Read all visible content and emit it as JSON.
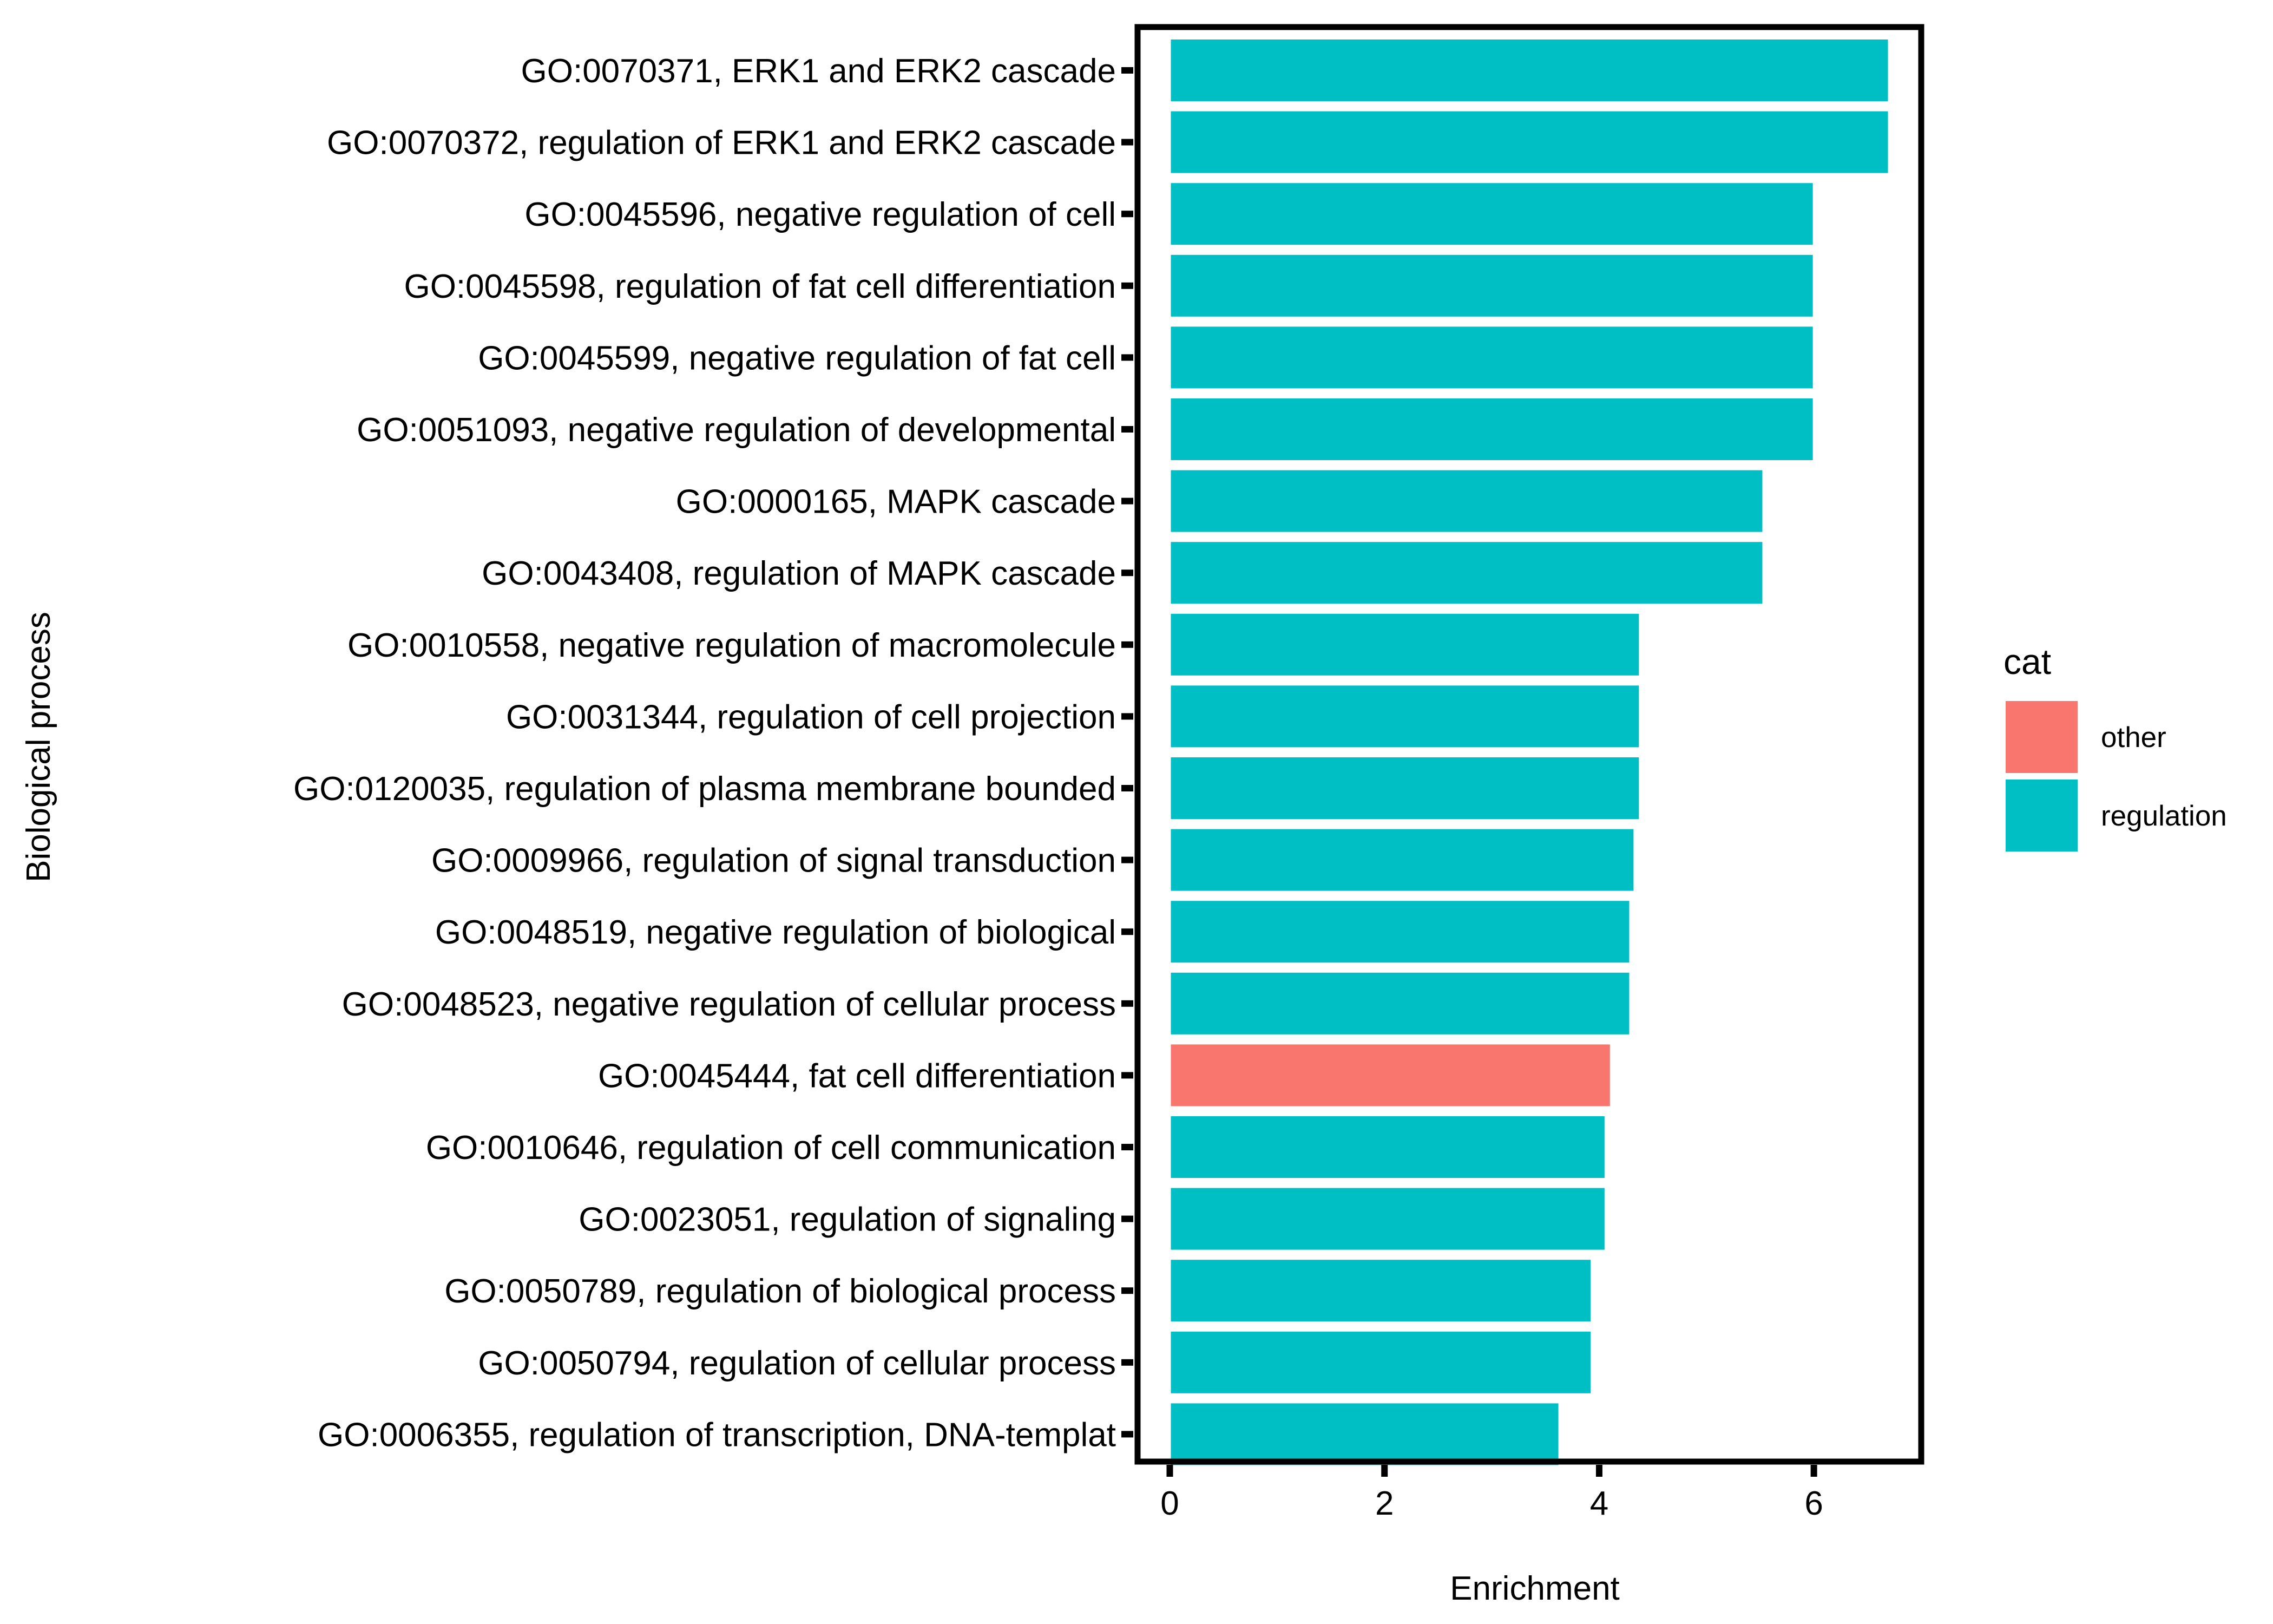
{
  "chart_data": {
    "type": "bar",
    "orientation": "horizontal",
    "xlabel": "Enrichment",
    "ylabel": "Biological process",
    "xlim": [
      -0.3,
      7.0
    ],
    "xticks": [
      0,
      2,
      4,
      6
    ],
    "grid": false,
    "legend_position": "right",
    "legend_title": "cat",
    "colors": {
      "other": "#F8766D",
      "regulation": "#00BFC4"
    },
    "legend": [
      {
        "name": "other",
        "color": "#F8766D"
      },
      {
        "name": "regulation",
        "color": "#00BFC4"
      }
    ],
    "categories": [
      "GO:0070371, ERK1 and ERK2 cascade",
      "GO:0070372, regulation of ERK1 and ERK2 cascade",
      "GO:0045596, negative regulation of cell",
      "GO:0045598, regulation of fat cell differentiation",
      "GO:0045599, negative regulation of fat cell",
      "GO:0051093, negative regulation of developmental",
      "GO:0000165, MAPK cascade",
      "GO:0043408, regulation of MAPK cascade",
      "GO:0010558, negative regulation of macromolecule",
      "GO:0031344, regulation of cell projection",
      "GO:0120035, regulation of plasma membrane bounded",
      "GO:0009966, regulation of signal transduction",
      "GO:0048519, negative regulation of biological",
      "GO:0048523, negative regulation of cellular process",
      "GO:0045444, fat cell differentiation",
      "GO:0010646, regulation of cell communication",
      "GO:0023051, regulation of signaling",
      "GO:0050789, regulation of biological process",
      "GO:0050794, regulation of cellular process",
      "GO:0006355, regulation of transcription, DNA-templat"
    ],
    "values": [
      6.7,
      6.7,
      6.0,
      6.0,
      6.0,
      6.0,
      5.53,
      5.53,
      4.38,
      4.38,
      4.38,
      4.33,
      4.29,
      4.29,
      4.11,
      4.06,
      4.06,
      3.93,
      3.93,
      3.63
    ],
    "groups": [
      "regulation",
      "regulation",
      "regulation",
      "regulation",
      "regulation",
      "regulation",
      "regulation",
      "regulation",
      "regulation",
      "regulation",
      "regulation",
      "regulation",
      "regulation",
      "regulation",
      "other",
      "regulation",
      "regulation",
      "regulation",
      "regulation",
      "regulation"
    ]
  }
}
